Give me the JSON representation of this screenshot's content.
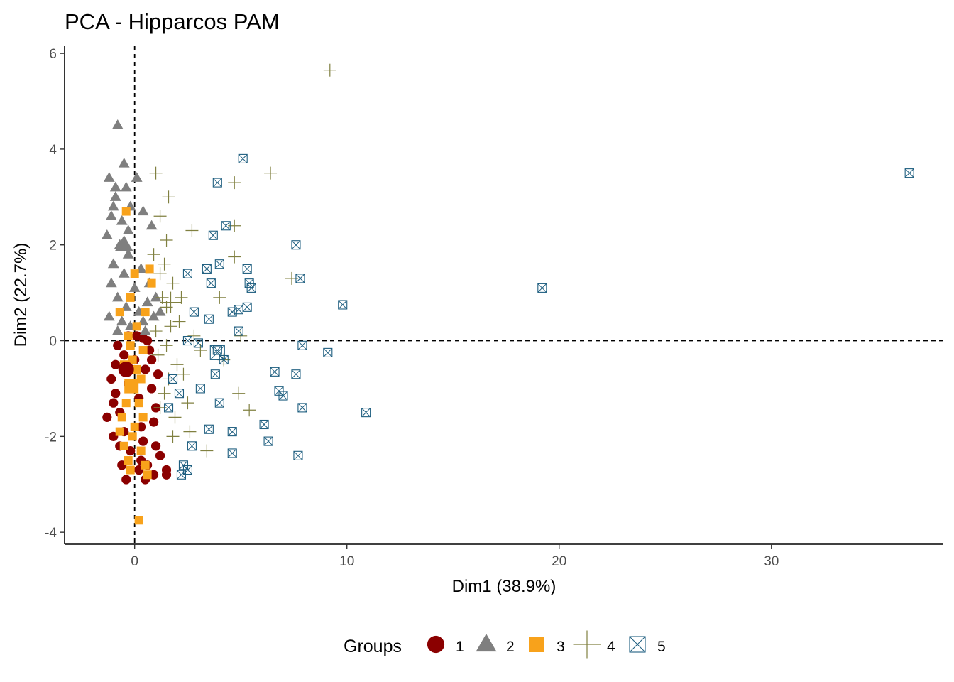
{
  "chart_data": {
    "type": "scatter",
    "title": "PCA - Hipparcos PAM",
    "xlabel": "Dim1 (38.9%)",
    "ylabel": "Dim2 (22.7%)",
    "xlim": [
      -3.3,
      38.1
    ],
    "ylim": [
      -4.25,
      6.15
    ],
    "x_ticks": [
      0,
      10,
      20,
      30
    ],
    "y_ticks": [
      -4,
      -2,
      0,
      2,
      4,
      6
    ],
    "x_tick_labels": [
      "0",
      "10",
      "20",
      "30"
    ],
    "y_tick_labels": [
      "-4",
      "-2",
      "0",
      "2",
      "4",
      "6"
    ],
    "reference_lines": {
      "x": 0,
      "y": 0
    },
    "grid": false,
    "legend": {
      "title": "Groups",
      "position": "bottom"
    },
    "series": [
      {
        "name": "1",
        "shape": "circle",
        "color": "#8b0000",
        "points": [
          [
            -0.9,
            -0.5
          ],
          [
            -0.5,
            -0.3
          ],
          [
            -0.3,
            -0.9
          ],
          [
            0.2,
            -1.2
          ],
          [
            0.5,
            -0.6
          ],
          [
            -0.7,
            -1.5
          ],
          [
            -1.0,
            -2.0
          ],
          [
            -0.2,
            -2.3
          ],
          [
            0.3,
            -2.5
          ],
          [
            -0.4,
            -2.9
          ],
          [
            0.6,
            -2.6
          ],
          [
            1.0,
            -2.2
          ],
          [
            -1.3,
            -1.6
          ],
          [
            -0.8,
            -0.1
          ],
          [
            0.1,
            0.1
          ],
          [
            0.6,
            0.0
          ],
          [
            0.8,
            -1.0
          ],
          [
            0.9,
            -1.7
          ],
          [
            -0.6,
            -2.6
          ],
          [
            1.5,
            -2.7
          ],
          [
            1.2,
            -2.4
          ],
          [
            0.4,
            -2.1
          ],
          [
            0.7,
            -0.2
          ],
          [
            -1.1,
            -0.8
          ],
          [
            -0.2,
            -0.6
          ],
          [
            0.3,
            -1.8
          ],
          [
            1.0,
            -1.4
          ],
          [
            -0.5,
            -1.9
          ],
          [
            0.5,
            -2.9
          ],
          [
            1.5,
            -2.8
          ],
          [
            -0.9,
            -1.1
          ],
          [
            0.0,
            -0.4
          ],
          [
            0.4,
            0.05
          ],
          [
            -0.3,
            0.1
          ],
          [
            0.8,
            -0.4
          ],
          [
            1.1,
            -0.7
          ],
          [
            -1.0,
            -1.3
          ],
          [
            -0.7,
            -2.2
          ],
          [
            0.2,
            -2.7
          ],
          [
            0.9,
            -2.8
          ]
        ]
      },
      {
        "name": "2",
        "shape": "triangle",
        "color": "#7f7f7f",
        "points": [
          [
            -0.8,
            4.5
          ],
          [
            -1.2,
            3.4
          ],
          [
            -0.9,
            3.2
          ],
          [
            -0.5,
            3.7
          ],
          [
            -0.4,
            3.2
          ],
          [
            0.1,
            3.4
          ],
          [
            -1.0,
            2.8
          ],
          [
            -0.6,
            2.5
          ],
          [
            -0.2,
            2.8
          ],
          [
            -1.3,
            2.2
          ],
          [
            -0.7,
            2.0
          ],
          [
            -0.3,
            1.8
          ],
          [
            0.3,
            1.5
          ],
          [
            -1.1,
            1.2
          ],
          [
            -0.8,
            0.9
          ],
          [
            -0.4,
            0.7
          ],
          [
            0.2,
            0.6
          ],
          [
            0.6,
            0.8
          ],
          [
            -1.2,
            0.5
          ],
          [
            -0.6,
            0.4
          ],
          [
            -0.2,
            0.3
          ],
          [
            0.5,
            0.2
          ],
          [
            0.9,
            0.5
          ],
          [
            1.2,
            0.6
          ],
          [
            -0.9,
            3.0
          ],
          [
            -0.3,
            2.3
          ],
          [
            0.4,
            2.7
          ],
          [
            0.8,
            2.4
          ],
          [
            -1.0,
            1.6
          ],
          [
            -0.5,
            1.4
          ],
          [
            0.0,
            1.1
          ],
          [
            0.7,
            1.2
          ],
          [
            -0.8,
            0.2
          ],
          [
            0.4,
            0.4
          ],
          [
            1.0,
            0.9
          ],
          [
            -1.1,
            2.6
          ]
        ]
      },
      {
        "name": "3",
        "shape": "square",
        "color": "#f8a21b",
        "points": [
          [
            -0.4,
            2.7
          ],
          [
            0.7,
            1.5
          ],
          [
            0.8,
            1.2
          ],
          [
            0.0,
            1.4
          ],
          [
            -0.2,
            0.9
          ],
          [
            0.5,
            0.6
          ],
          [
            -0.7,
            0.6
          ],
          [
            0.1,
            0.3
          ],
          [
            -0.3,
            0.1
          ],
          [
            0.4,
            -0.2
          ],
          [
            -0.5,
            -0.5
          ],
          [
            -0.2,
            -1.0
          ],
          [
            0.2,
            -1.3
          ],
          [
            -0.6,
            -1.6
          ],
          [
            -0.1,
            -2.0
          ],
          [
            0.3,
            -2.3
          ],
          [
            -0.3,
            -2.5
          ],
          [
            -0.2,
            -2.7
          ],
          [
            0.5,
            -2.6
          ],
          [
            0.6,
            -2.8
          ],
          [
            0.2,
            -3.75
          ],
          [
            -0.7,
            -1.9
          ],
          [
            -0.1,
            -0.4
          ],
          [
            0.3,
            -0.8
          ],
          [
            -0.4,
            -1.3
          ],
          [
            0.0,
            -1.8
          ],
          [
            -0.5,
            -2.2
          ],
          [
            0.4,
            -1.6
          ],
          [
            -0.2,
            -0.1
          ],
          [
            0.1,
            -0.6
          ]
        ]
      },
      {
        "name": "4",
        "shape": "plus",
        "color": "#808040",
        "points": [
          [
            9.2,
            5.65
          ],
          [
            6.4,
            3.5
          ],
          [
            4.7,
            3.3
          ],
          [
            1.0,
            3.5
          ],
          [
            1.6,
            3.0
          ],
          [
            1.2,
            2.6
          ],
          [
            2.7,
            2.3
          ],
          [
            1.5,
            2.1
          ],
          [
            4.7,
            2.4
          ],
          [
            4.7,
            1.75
          ],
          [
            0.9,
            1.8
          ],
          [
            1.4,
            1.6
          ],
          [
            7.4,
            1.3
          ],
          [
            1.2,
            1.4
          ],
          [
            1.8,
            1.2
          ],
          [
            2.2,
            0.9
          ],
          [
            4.0,
            0.9
          ],
          [
            1.5,
            0.7
          ],
          [
            2.1,
            0.4
          ],
          [
            1.0,
            0.2
          ],
          [
            5.0,
            0.1
          ],
          [
            1.5,
            -0.1
          ],
          [
            1.1,
            -0.3
          ],
          [
            4.2,
            -0.4
          ],
          [
            2.3,
            -0.7
          ],
          [
            1.6,
            -0.8
          ],
          [
            4.9,
            -1.1
          ],
          [
            5.4,
            -1.45
          ],
          [
            2.5,
            -1.3
          ],
          [
            1.9,
            -1.6
          ],
          [
            3.4,
            -2.3
          ],
          [
            2.6,
            -1.9
          ],
          [
            1.4,
            -1.1
          ],
          [
            1.8,
            -2.0
          ],
          [
            1.2,
            -1.4
          ],
          [
            2.0,
            -0.5
          ],
          [
            2.8,
            0.1
          ],
          [
            3.1,
            -0.2
          ],
          [
            1.3,
            0.9
          ],
          [
            1.7,
            0.3
          ]
        ]
      },
      {
        "name": "5",
        "shape": "boxed-x",
        "color": "#1f5f80",
        "points": [
          [
            36.5,
            3.5
          ],
          [
            19.2,
            1.1
          ],
          [
            5.1,
            3.8
          ],
          [
            3.9,
            3.3
          ],
          [
            3.7,
            2.2
          ],
          [
            4.3,
            2.4
          ],
          [
            7.6,
            2.0
          ],
          [
            4.0,
            1.6
          ],
          [
            3.4,
            1.5
          ],
          [
            5.3,
            1.5
          ],
          [
            7.8,
            1.3
          ],
          [
            5.4,
            1.2
          ],
          [
            5.5,
            1.1
          ],
          [
            2.5,
            1.4
          ],
          [
            3.6,
            1.2
          ],
          [
            9.8,
            0.75
          ],
          [
            5.3,
            0.7
          ],
          [
            4.9,
            0.65
          ],
          [
            4.6,
            0.6
          ],
          [
            2.8,
            0.6
          ],
          [
            3.5,
            0.45
          ],
          [
            4.9,
            0.2
          ],
          [
            2.5,
            0.0
          ],
          [
            3.0,
            -0.05
          ],
          [
            7.9,
            -0.1
          ],
          [
            9.1,
            -0.25
          ],
          [
            3.9,
            -0.2
          ],
          [
            4.2,
            -0.4
          ],
          [
            6.6,
            -0.65
          ],
          [
            7.6,
            -0.7
          ],
          [
            3.8,
            -0.7
          ],
          [
            6.8,
            -1.05
          ],
          [
            7.0,
            -1.15
          ],
          [
            10.9,
            -1.5
          ],
          [
            7.9,
            -1.4
          ],
          [
            4.0,
            -1.3
          ],
          [
            6.1,
            -1.75
          ],
          [
            4.6,
            -1.9
          ],
          [
            3.5,
            -1.85
          ],
          [
            6.3,
            -2.1
          ],
          [
            4.6,
            -2.35
          ],
          [
            7.7,
            -2.4
          ],
          [
            2.7,
            -2.2
          ],
          [
            2.3,
            -2.6
          ],
          [
            2.5,
            -2.7
          ],
          [
            2.2,
            -2.8
          ],
          [
            1.6,
            -1.4
          ],
          [
            2.1,
            -1.1
          ],
          [
            1.8,
            -0.8
          ],
          [
            3.1,
            -1.0
          ]
        ]
      }
    ],
    "centroids": [
      {
        "group": "1",
        "x": -0.4,
        "y": -0.6
      },
      {
        "group": "2",
        "x": -0.5,
        "y": 2.0
      },
      {
        "group": "3",
        "x": -0.15,
        "y": -0.95
      },
      {
        "group": "4",
        "x": 1.7,
        "y": 0.8
      },
      {
        "group": "5",
        "x": 3.9,
        "y": -0.25
      }
    ]
  }
}
